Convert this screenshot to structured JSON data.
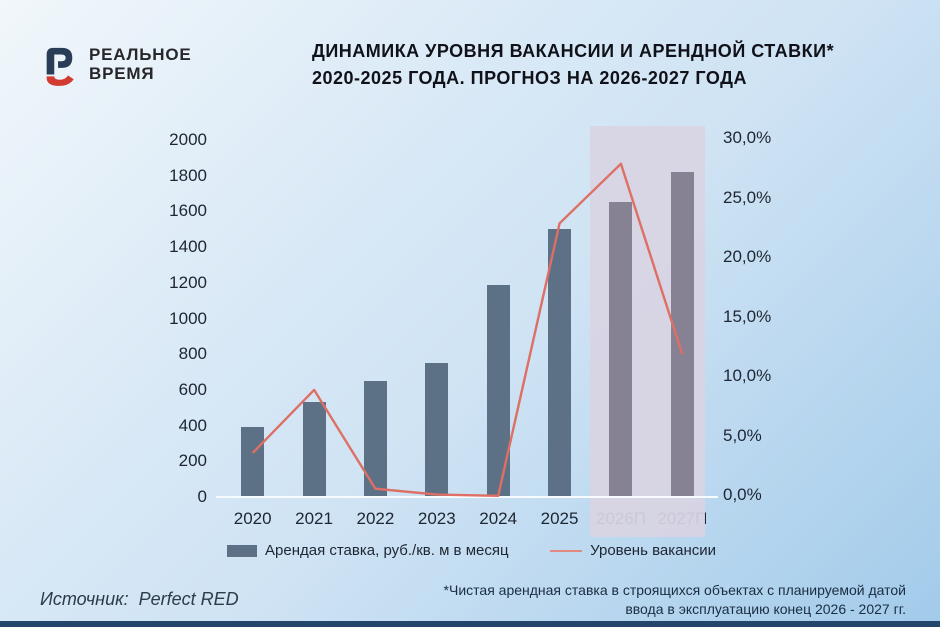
{
  "brand": {
    "name_line1": "РЕАЛЬНОЕ",
    "name_line2": "ВРЕМЯ",
    "mark_navy": "#2a3d56",
    "mark_red": "#d23b32"
  },
  "title": {
    "line1": "ДИНАМИКА УРОВНЯ ВАКАНСИИ И АРЕНДНОЙ СТАВКИ*",
    "line2": "2020-2025 ГОДА. ПРОГНОЗ НА 2026-2027 ГОДА"
  },
  "chart_data": {
    "type": "bar",
    "subtype": "combo bar+line, dual axis",
    "categories": [
      "2020",
      "2021",
      "2022",
      "2023",
      "2024",
      "2025",
      "2026П",
      "2027П"
    ],
    "forecast_start_index": 6,
    "series": [
      {
        "name": "Арендая ставка, руб./кв. м в месяц",
        "type": "bar",
        "axis": "left",
        "values": [
          390,
          530,
          650,
          750,
          1190,
          1500,
          1650,
          1820
        ],
        "color": "#5d7186",
        "forecast_color": "#868293"
      },
      {
        "name": "Уровень вакансии",
        "type": "line",
        "axis": "right",
        "unit": "%",
        "values": [
          3.7,
          9,
          0.7,
          0.2,
          0.1,
          23,
          28,
          12
        ],
        "color": "#dd6f64",
        "legend_color": "#e08a80"
      }
    ],
    "left_axis": {
      "min": 0,
      "max": 2000,
      "step": 200,
      "tick_labels": [
        "2000",
        "1800",
        "1600",
        "1400",
        "1200",
        "1000",
        "800",
        "600",
        "400",
        "200",
        "0"
      ]
    },
    "right_axis": {
      "min": 0,
      "max": 30,
      "step": 5,
      "tick_labels": [
        "30,0%",
        "25,0%",
        "20,0%",
        "15,0%",
        "10,0%",
        "5,0%",
        "0,0%"
      ]
    },
    "forecast_highlight_color": "#d8d4e3",
    "legend_position": "bottom",
    "grid": false
  },
  "source": {
    "label": "Источник:",
    "value": "Perfect RED"
  },
  "footnote": {
    "line1": "*Чистая арендная ставка в строящихся объектах с планируемой датой",
    "line2": "ввода в эксплуатацию конец 2026 - 2027 гг."
  }
}
